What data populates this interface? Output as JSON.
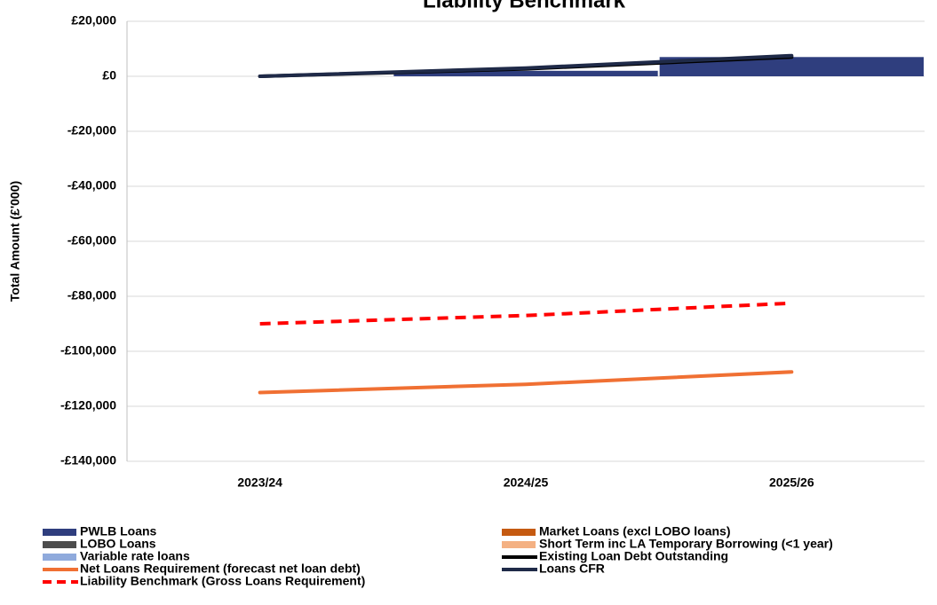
{
  "chart_data": {
    "type": "combo",
    "title": "Liability Benchmark",
    "y_label": "Total Amount (£'000)",
    "categories": [
      "2023/24",
      "2024/25",
      "2025/26"
    ],
    "ylim": [
      -140000,
      20000
    ],
    "yticks": [
      {
        "value": -140000,
        "label": "-£140,000"
      },
      {
        "value": -120000,
        "label": "-£120,000"
      },
      {
        "value": -100000,
        "label": "-£100,000"
      },
      {
        "value": -80000,
        "label": "-£80,000"
      },
      {
        "value": -60000,
        "label": "-£60,000"
      },
      {
        "value": -40000,
        "label": "-£40,000"
      },
      {
        "value": -20000,
        "label": "-£20,000"
      },
      {
        "value": 0,
        "label": "£0"
      },
      {
        "value": 20000,
        "label": "£20,000"
      }
    ],
    "grid": true,
    "legend": "bottom",
    "series": [
      {
        "name": "PWLB Loans",
        "type": "bar",
        "color": "#2f3e7e",
        "values": [
          0,
          2000,
          7000
        ]
      },
      {
        "name": "Market Loans (excl LOBO loans)",
        "type": "bar",
        "color": "#c55a11",
        "values": [
          0,
          0,
          0
        ]
      },
      {
        "name": "LOBO Loans",
        "type": "bar",
        "color": "#4d4d4d",
        "values": [
          0,
          0,
          0
        ]
      },
      {
        "name": "Short Term inc LA Temporary Borrowing (<1 year)",
        "type": "bar",
        "color": "#f4b183",
        "values": [
          0,
          0,
          0
        ]
      },
      {
        "name": "Variable rate loans",
        "type": "bar",
        "color": "#8faadc",
        "values": [
          0,
          0,
          0
        ]
      },
      {
        "name": "Existing Loan Debt Outstanding",
        "type": "line",
        "color": "#000000",
        "values": [
          0,
          2700,
          7000
        ]
      },
      {
        "name": "Net Loans Requirement (forecast net loan debt)",
        "type": "line",
        "color": "#f07033",
        "values": [
          -115000,
          -112000,
          -107500
        ]
      },
      {
        "name": "Loans CFR",
        "type": "line",
        "color": "#1f2a48",
        "values": [
          0,
          3000,
          7500
        ]
      },
      {
        "name": "Liability Benchmark (Gross Loans Requirement)",
        "type": "line",
        "color": "#ff0000",
        "dashed": true,
        "values": [
          -90000,
          -87000,
          -82500
        ]
      }
    ]
  }
}
